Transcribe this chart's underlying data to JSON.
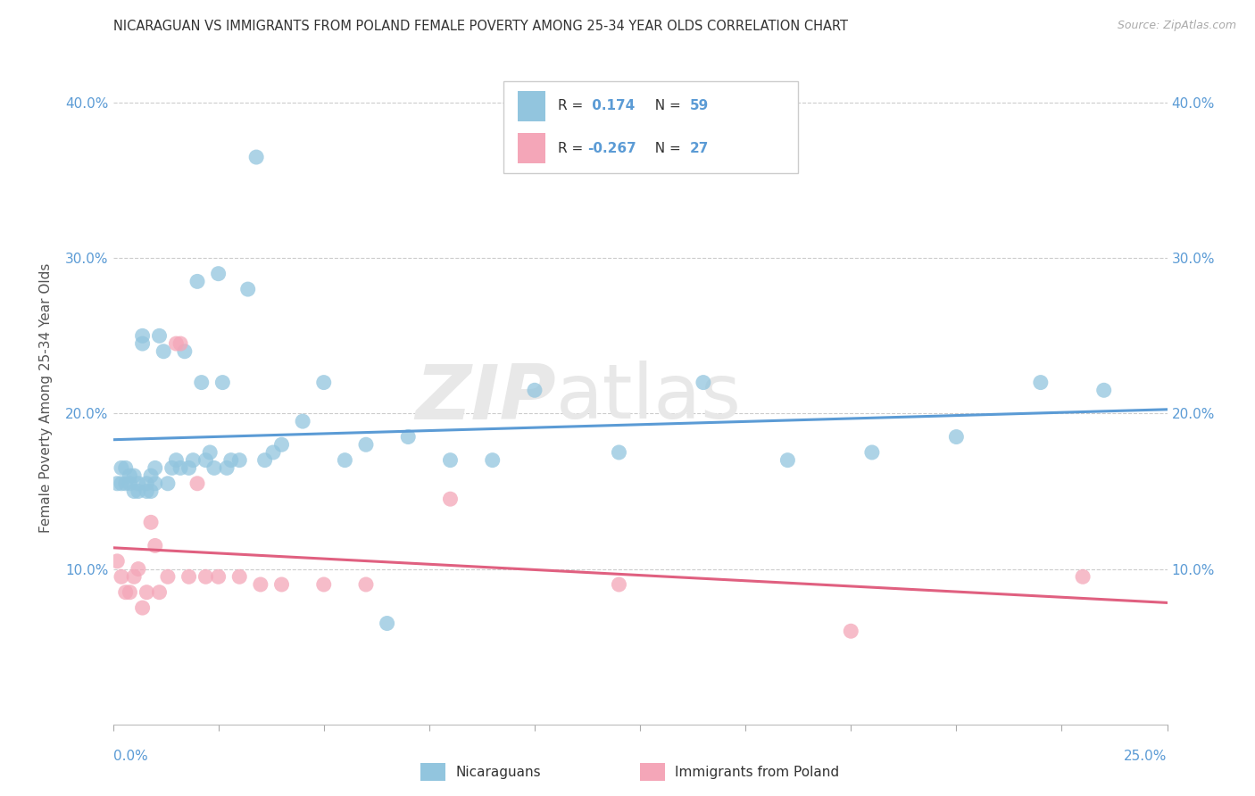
{
  "title": "NICARAGUAN VS IMMIGRANTS FROM POLAND FEMALE POVERTY AMONG 25-34 YEAR OLDS CORRELATION CHART",
  "source": "Source: ZipAtlas.com",
  "ylabel": "Female Poverty Among 25-34 Year Olds",
  "xmin": 0.0,
  "xmax": 0.25,
  "ymin": 0.0,
  "ymax": 0.42,
  "yticks": [
    0.0,
    0.1,
    0.2,
    0.3,
    0.4
  ],
  "ytick_labels": [
    "",
    "10.0%",
    "20.0%",
    "30.0%",
    "40.0%"
  ],
  "r_nicaraguan": 0.174,
  "n_nicaraguan": 59,
  "r_poland": -0.267,
  "n_poland": 27,
  "color_nicaraguan": "#92C5DE",
  "color_poland": "#F4A6B8",
  "line_color_nicaraguan": "#5B9BD5",
  "line_color_poland": "#E06080",
  "nicaraguan_x": [
    0.001,
    0.002,
    0.002,
    0.003,
    0.003,
    0.004,
    0.004,
    0.005,
    0.005,
    0.006,
    0.006,
    0.007,
    0.007,
    0.008,
    0.008,
    0.009,
    0.009,
    0.01,
    0.01,
    0.011,
    0.012,
    0.013,
    0.014,
    0.015,
    0.016,
    0.017,
    0.018,
    0.019,
    0.02,
    0.021,
    0.022,
    0.023,
    0.024,
    0.025,
    0.026,
    0.027,
    0.028,
    0.03,
    0.032,
    0.034,
    0.036,
    0.038,
    0.04,
    0.045,
    0.05,
    0.055,
    0.06,
    0.065,
    0.07,
    0.08,
    0.09,
    0.1,
    0.12,
    0.14,
    0.16,
    0.18,
    0.2,
    0.22,
    0.235
  ],
  "nicaraguan_y": [
    0.155,
    0.155,
    0.165,
    0.155,
    0.165,
    0.155,
    0.16,
    0.15,
    0.16,
    0.15,
    0.155,
    0.25,
    0.245,
    0.15,
    0.155,
    0.15,
    0.16,
    0.155,
    0.165,
    0.25,
    0.24,
    0.155,
    0.165,
    0.17,
    0.165,
    0.24,
    0.165,
    0.17,
    0.285,
    0.22,
    0.17,
    0.175,
    0.165,
    0.29,
    0.22,
    0.165,
    0.17,
    0.17,
    0.28,
    0.365,
    0.17,
    0.175,
    0.18,
    0.195,
    0.22,
    0.17,
    0.18,
    0.065,
    0.185,
    0.17,
    0.17,
    0.215,
    0.175,
    0.22,
    0.17,
    0.175,
    0.185,
    0.22,
    0.215
  ],
  "poland_x": [
    0.001,
    0.002,
    0.003,
    0.004,
    0.005,
    0.006,
    0.007,
    0.008,
    0.009,
    0.01,
    0.011,
    0.013,
    0.015,
    0.016,
    0.018,
    0.02,
    0.022,
    0.025,
    0.03,
    0.035,
    0.04,
    0.05,
    0.06,
    0.08,
    0.12,
    0.175,
    0.23
  ],
  "poland_y": [
    0.105,
    0.095,
    0.085,
    0.085,
    0.095,
    0.1,
    0.075,
    0.085,
    0.13,
    0.115,
    0.085,
    0.095,
    0.245,
    0.245,
    0.095,
    0.155,
    0.095,
    0.095,
    0.095,
    0.09,
    0.09,
    0.09,
    0.09,
    0.145,
    0.09,
    0.06,
    0.095
  ],
  "background_color": "#FFFFFF",
  "grid_color": "#CCCCCC"
}
